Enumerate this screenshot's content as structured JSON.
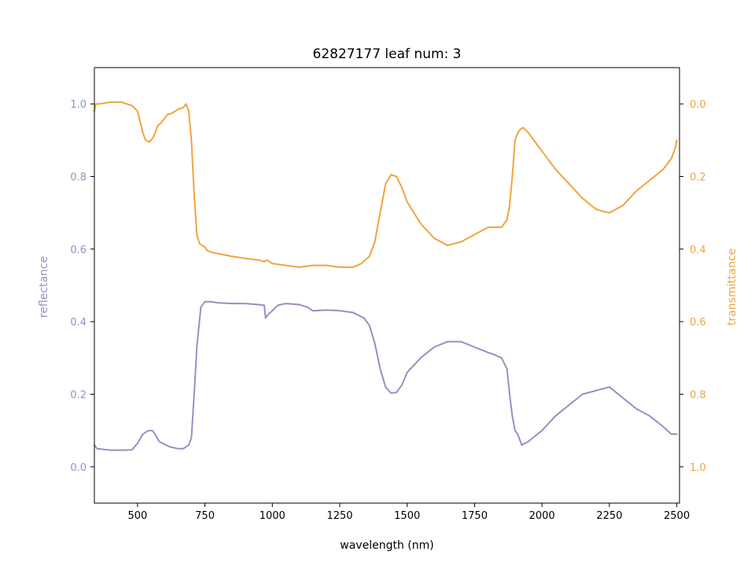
{
  "chart_data": {
    "type": "line",
    "title": "62827177 leaf num: 3",
    "xlabel": "wavelength (nm)",
    "ylabel_left": "reflectance",
    "ylabel_right": "transmittance",
    "xlim": [
      340,
      2510
    ],
    "ylim_left": [
      -0.1,
      1.1
    ],
    "ylim_right": [
      1.1,
      -0.1
    ],
    "right_axis_inverted": true,
    "grid": false,
    "x_ticks": [
      500,
      750,
      1000,
      1250,
      1500,
      1750,
      2000,
      2250,
      2500
    ],
    "y_ticks_left": [
      0.0,
      0.2,
      0.4,
      0.6,
      0.8,
      1.0
    ],
    "y_ticks_right": [
      0.0,
      0.2,
      0.4,
      0.6,
      0.8,
      1.0
    ],
    "colors": {
      "reflectance": "#9590c4",
      "transmittance": "#f0a43e"
    },
    "series": [
      {
        "axis": "left",
        "x": [
          340,
          345,
          350,
          400,
          450,
          480,
          500,
          520,
          540,
          555,
          565,
          580,
          600,
          620,
          650,
          670,
          690,
          700,
          710,
          720,
          735,
          750,
          770,
          800,
          850,
          900,
          950,
          970,
          975,
          985,
          1000,
          1020,
          1050,
          1100,
          1130,
          1150,
          1160,
          1200,
          1250,
          1300,
          1340,
          1360,
          1380,
          1400,
          1420,
          1440,
          1460,
          1480,
          1500,
          1550,
          1600,
          1650,
          1700,
          1750,
          1800,
          1820,
          1850,
          1870,
          1880,
          1890,
          1900,
          1910,
          1920,
          1925,
          1950,
          2000,
          2050,
          2100,
          2150,
          2200,
          2250,
          2300,
          2350,
          2400,
          2450,
          2480,
          2500
        ],
        "y": [
          0.06,
          0.055,
          0.05,
          0.046,
          0.046,
          0.047,
          0.065,
          0.09,
          0.1,
          0.1,
          0.09,
          0.07,
          0.062,
          0.055,
          0.05,
          0.05,
          0.06,
          0.08,
          0.2,
          0.33,
          0.44,
          0.455,
          0.455,
          0.452,
          0.45,
          0.45,
          0.447,
          0.445,
          0.41,
          0.42,
          0.43,
          0.445,
          0.45,
          0.447,
          0.44,
          0.43,
          0.43,
          0.432,
          0.43,
          0.425,
          0.41,
          0.39,
          0.34,
          0.27,
          0.22,
          0.203,
          0.205,
          0.225,
          0.26,
          0.3,
          0.33,
          0.345,
          0.345,
          0.33,
          0.315,
          0.31,
          0.3,
          0.27,
          0.2,
          0.14,
          0.1,
          0.09,
          0.07,
          0.06,
          0.07,
          0.1,
          0.14,
          0.17,
          0.2,
          0.21,
          0.22,
          0.19,
          0.16,
          0.14,
          0.11,
          0.09,
          0.09
        ]
      },
      {
        "axis": "right",
        "x": [
          340,
          345,
          350,
          360,
          400,
          440,
          460,
          480,
          500,
          510,
          520,
          530,
          545,
          560,
          575,
          590,
          610,
          630,
          650,
          670,
          680,
          690,
          700,
          710,
          720,
          730,
          740,
          750,
          760,
          780,
          850,
          900,
          950,
          970,
          980,
          1000,
          1050,
          1100,
          1150,
          1200,
          1250,
          1300,
          1330,
          1360,
          1380,
          1400,
          1420,
          1440,
          1460,
          1480,
          1500,
          1550,
          1600,
          1650,
          1700,
          1750,
          1800,
          1850,
          1870,
          1880,
          1890,
          1900,
          1910,
          1920,
          1930,
          1950,
          2000,
          2050,
          2100,
          2150,
          2200,
          2220,
          2250,
          2300,
          2350,
          2400,
          2450,
          2480,
          2495,
          2500
        ],
        "y": [
          0.02,
          0.0,
          0.0,
          0.0,
          -0.005,
          -0.005,
          0.0,
          0.005,
          0.02,
          0.05,
          0.08,
          0.1,
          0.105,
          0.09,
          0.06,
          0.05,
          0.03,
          0.025,
          0.015,
          0.01,
          0.0,
          0.02,
          0.1,
          0.25,
          0.36,
          0.385,
          0.39,
          0.395,
          0.405,
          0.41,
          0.42,
          0.426,
          0.43,
          0.435,
          0.43,
          0.44,
          0.445,
          0.45,
          0.445,
          0.445,
          0.45,
          0.45,
          0.44,
          0.42,
          0.38,
          0.3,
          0.22,
          0.195,
          0.2,
          0.23,
          0.27,
          0.33,
          0.37,
          0.39,
          0.38,
          0.36,
          0.34,
          0.34,
          0.32,
          0.28,
          0.2,
          0.1,
          0.08,
          0.07,
          0.065,
          0.08,
          0.13,
          0.18,
          0.22,
          0.26,
          0.29,
          0.295,
          0.3,
          0.28,
          0.24,
          0.21,
          0.18,
          0.15,
          0.12,
          0.1
        ]
      }
    ]
  }
}
